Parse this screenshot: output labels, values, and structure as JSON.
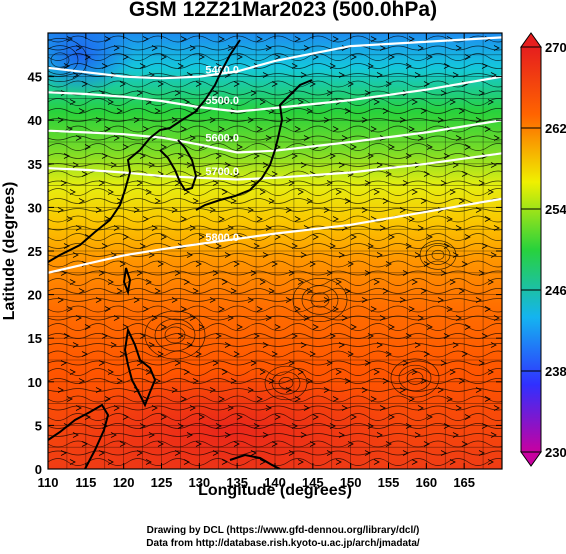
{
  "title": "GSM 12Z21Mar2023 (500.0hPa)",
  "x_axis": {
    "label": "Longitude (degrees)",
    "ticks": [
      110,
      115,
      120,
      125,
      130,
      135,
      140,
      145,
      150,
      155,
      160,
      165
    ],
    "range": [
      110,
      170
    ]
  },
  "y_axis": {
    "label": "Latitude  (degrees)",
    "ticks": [
      0,
      5,
      10,
      15,
      20,
      25,
      30,
      35,
      40,
      45
    ],
    "range": [
      0,
      50
    ]
  },
  "colorbar": {
    "ticks": [
      270,
      262,
      254,
      246,
      238,
      230
    ],
    "range": [
      230,
      270
    ],
    "colors": [
      "#c800a0",
      "#3030ff",
      "#14b4f0",
      "#28d23c",
      "#f0f000",
      "#ff6400",
      "#e61e1e"
    ]
  },
  "contours": [
    {
      "label": "5400.0",
      "lat": [
        46,
        45.5,
        45,
        44.8,
        45,
        45.6,
        46.8,
        48.5,
        49.5
      ],
      "lon": [
        110,
        115,
        120,
        125,
        130,
        135,
        140,
        150,
        170
      ]
    },
    {
      "label": "5500.0",
      "lat": [
        43.2,
        43,
        42.7,
        42.2,
        41.5,
        41,
        41.4,
        42.3,
        43.5,
        45
      ],
      "lon": [
        110,
        115,
        120,
        125,
        130,
        135,
        140,
        150,
        160,
        170
      ]
    },
    {
      "label": "5600.0",
      "lat": [
        38.8,
        38.6,
        38.4,
        38,
        37.2,
        36.3,
        36.5,
        37.5,
        38.6,
        40
      ],
      "lon": [
        110,
        115,
        120,
        125,
        130,
        135,
        140,
        150,
        160,
        170
      ]
    },
    {
      "label": "5700.0",
      "lat": [
        34.5,
        34.3,
        34,
        33.6,
        33.4,
        33.2,
        33.4,
        34,
        35,
        36.2
      ],
      "lon": [
        110,
        115,
        120,
        125,
        130,
        135,
        140,
        150,
        160,
        170
      ]
    },
    {
      "label": "5800.0",
      "lat": [
        22.5,
        23.5,
        24.5,
        25.2,
        25.8,
        26.4,
        27,
        28,
        29.5,
        31
      ],
      "lon": [
        110,
        115,
        120,
        125,
        130,
        135,
        140,
        150,
        160,
        170
      ]
    }
  ],
  "credits": {
    "line1": "Drawing by DCL (https://www.gfd-dennou.org/library/dcl/)",
    "line2": "Data from http://database.rish.kyoto-u.ac.jp/arch/jmadata/"
  }
}
